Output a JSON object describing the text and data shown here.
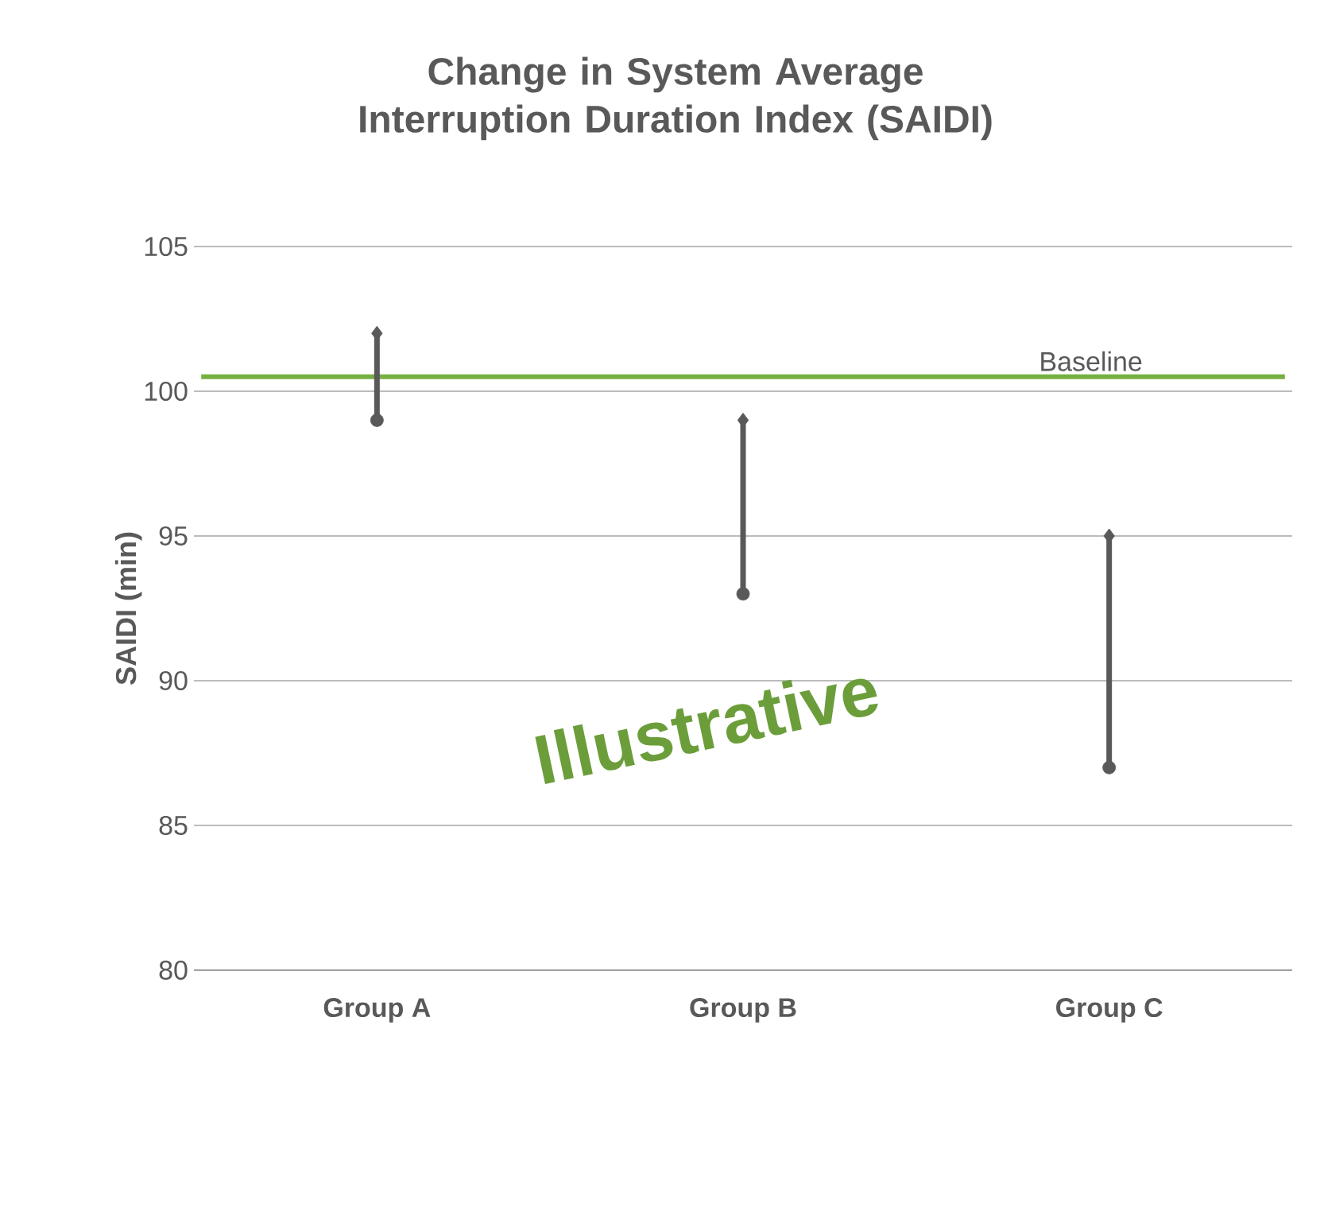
{
  "chart_data": {
    "type": "scatter",
    "title": "Change in System Average Interruption Duration Index (SAIDI)",
    "ylabel": "SAIDI (min)",
    "categories": [
      "Group A",
      "Group B",
      "Group C"
    ],
    "series": [
      {
        "type": "line",
        "color": "#595959",
        "x": [
          "Group A",
          "Group A"
        ],
        "values": [
          99,
          102
        ]
      },
      {
        "type": "line",
        "color": "#595959",
        "x": [
          "Group B",
          "Group B"
        ],
        "values": [
          93,
          99
        ]
      },
      {
        "type": "line",
        "color": "#595959",
        "x": [
          "Group C",
          "Group C"
        ],
        "values": [
          87,
          95
        ]
      },
      {
        "color": "#595959",
        "marker": "diamond",
        "x": [
          "Group A",
          "Group B",
          "Group C"
        ],
        "values": [
          102,
          99,
          95
        ]
      },
      {
        "color": "#595959",
        "marker": "circle",
        "x": [
          "Group A",
          "Group B",
          "Group C"
        ],
        "values": [
          99,
          93,
          87
        ]
      }
    ],
    "ylim": [
      80,
      105
    ],
    "yticks": [
      80,
      85,
      90,
      95,
      100,
      105
    ],
    "grid": "y",
    "ref_lines": [
      {
        "axis": "y",
        "value": 100.5,
        "label": "Baseline",
        "color": "#77b041"
      }
    ],
    "annotations": [
      "Illustrative"
    ]
  }
}
